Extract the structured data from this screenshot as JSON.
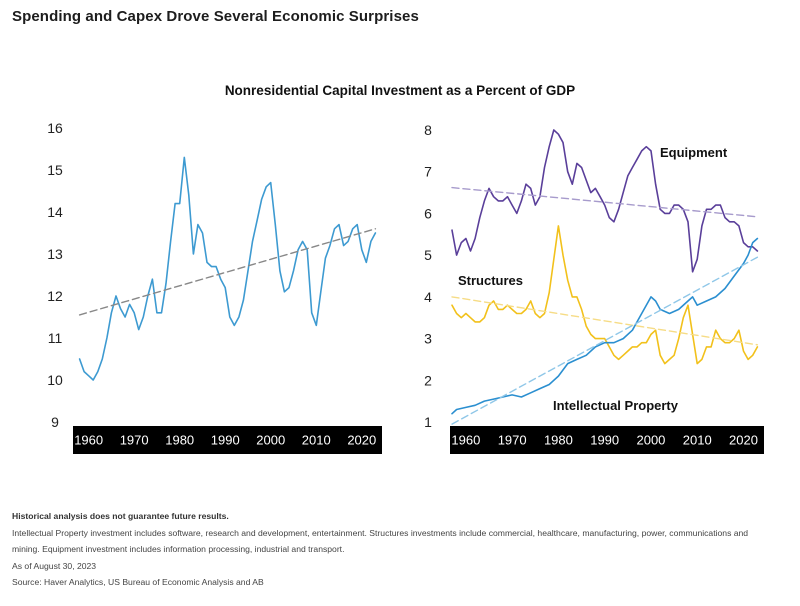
{
  "page_heading": "Spending and Capex Drove Several Economic Surprises",
  "chart_title": "Nonresidential Capital Investment as a Percent of GDP",
  "colors": {
    "total": "#3d9ad1",
    "total_trend": "#888888",
    "equipment": "#5a3f9a",
    "equipment_trend": "#a79bcc",
    "structures": "#f2c11b",
    "structures_trend": "#f6dc86",
    "ip": "#2b8fd0",
    "ip_trend": "#8fc7e8",
    "axis_band": "#000000"
  },
  "chart_data": [
    {
      "type": "line",
      "title": "",
      "yticks": [
        "16",
        "15",
        "14",
        "13",
        "12",
        "11",
        "10",
        "9"
      ],
      "xticks": [
        "1960",
        "1970",
        "1980",
        "1990",
        "2000",
        "2010",
        "2020"
      ],
      "xlim": [
        1957,
        2024
      ],
      "ylim": [
        9,
        16
      ],
      "series": [
        {
          "name": "",
          "color_key": "total",
          "points": [
            [
              1958,
              10.5
            ],
            [
              1959,
              10.2
            ],
            [
              1960,
              10.1
            ],
            [
              1961,
              10.0
            ],
            [
              1962,
              10.2
            ],
            [
              1963,
              10.5
            ],
            [
              1964,
              11.0
            ],
            [
              1965,
              11.6
            ],
            [
              1966,
              12.0
            ],
            [
              1967,
              11.7
            ],
            [
              1968,
              11.5
            ],
            [
              1969,
              11.8
            ],
            [
              1970,
              11.6
            ],
            [
              1971,
              11.2
            ],
            [
              1972,
              11.5
            ],
            [
              1973,
              12.0
            ],
            [
              1974,
              12.4
            ],
            [
              1975,
              11.6
            ],
            [
              1976,
              11.6
            ],
            [
              1977,
              12.3
            ],
            [
              1978,
              13.3
            ],
            [
              1979,
              14.2
            ],
            [
              1980,
              14.2
            ],
            [
              1981,
              15.3
            ],
            [
              1982,
              14.4
            ],
            [
              1983,
              13.0
            ],
            [
              1984,
              13.7
            ],
            [
              1985,
              13.5
            ],
            [
              1986,
              12.8
            ],
            [
              1987,
              12.7
            ],
            [
              1988,
              12.7
            ],
            [
              1989,
              12.4
            ],
            [
              1990,
              12.2
            ],
            [
              1991,
              11.5
            ],
            [
              1992,
              11.3
            ],
            [
              1993,
              11.5
            ],
            [
              1994,
              11.9
            ],
            [
              1995,
              12.6
            ],
            [
              1996,
              13.3
            ],
            [
              1997,
              13.8
            ],
            [
              1998,
              14.3
            ],
            [
              1999,
              14.6
            ],
            [
              2000,
              14.7
            ],
            [
              2001,
              13.7
            ],
            [
              2002,
              12.6
            ],
            [
              2003,
              12.1
            ],
            [
              2004,
              12.2
            ],
            [
              2005,
              12.6
            ],
            [
              2006,
              13.1
            ],
            [
              2007,
              13.3
            ],
            [
              2008,
              13.1
            ],
            [
              2009,
              11.6
            ],
            [
              2010,
              11.3
            ],
            [
              2011,
              12.1
            ],
            [
              2012,
              12.9
            ],
            [
              2013,
              13.2
            ],
            [
              2014,
              13.6
            ],
            [
              2015,
              13.7
            ],
            [
              2016,
              13.2
            ],
            [
              2017,
              13.3
            ],
            [
              2018,
              13.6
            ],
            [
              2019,
              13.7
            ],
            [
              2020,
              13.1
            ],
            [
              2021,
              12.8
            ],
            [
              2022,
              13.3
            ],
            [
              2023,
              13.5
            ]
          ]
        },
        {
          "name": "",
          "color_key": "total_trend",
          "dashed": true,
          "points": [
            [
              1958,
              11.55
            ],
            [
              2023,
              13.6
            ]
          ]
        }
      ]
    },
    {
      "type": "line",
      "title": "",
      "yticks": [
        "8",
        "7",
        "6",
        "5",
        "4",
        "3",
        "2",
        "1"
      ],
      "xticks": [
        "1960",
        "1970",
        "1980",
        "1990",
        "2000",
        "2010",
        "2020"
      ],
      "xlim": [
        1957,
        2024
      ],
      "ylim": [
        1,
        8
      ],
      "series": [
        {
          "name": "Equipment",
          "color_key": "equipment",
          "points": [
            [
              1957,
              5.6
            ],
            [
              1958,
              5.0
            ],
            [
              1959,
              5.3
            ],
            [
              1960,
              5.4
            ],
            [
              1961,
              5.1
            ],
            [
              1962,
              5.4
            ],
            [
              1963,
              5.9
            ],
            [
              1964,
              6.3
            ],
            [
              1965,
              6.6
            ],
            [
              1966,
              6.4
            ],
            [
              1967,
              6.3
            ],
            [
              1968,
              6.3
            ],
            [
              1969,
              6.4
            ],
            [
              1970,
              6.2
            ],
            [
              1971,
              6.0
            ],
            [
              1972,
              6.3
            ],
            [
              1973,
              6.7
            ],
            [
              1974,
              6.6
            ],
            [
              1975,
              6.2
            ],
            [
              1976,
              6.4
            ],
            [
              1977,
              7.1
            ],
            [
              1978,
              7.6
            ],
            [
              1979,
              8.0
            ],
            [
              1980,
              7.9
            ],
            [
              1981,
              7.7
            ],
            [
              1982,
              7.0
            ],
            [
              1983,
              6.7
            ],
            [
              1984,
              7.2
            ],
            [
              1985,
              7.1
            ],
            [
              1986,
              6.8
            ],
            [
              1987,
              6.5
            ],
            [
              1988,
              6.6
            ],
            [
              1989,
              6.4
            ],
            [
              1990,
              6.2
            ],
            [
              1991,
              5.9
            ],
            [
              1992,
              5.8
            ],
            [
              1993,
              6.1
            ],
            [
              1994,
              6.5
            ],
            [
              1995,
              6.9
            ],
            [
              1996,
              7.1
            ],
            [
              1997,
              7.3
            ],
            [
              1998,
              7.5
            ],
            [
              1999,
              7.6
            ],
            [
              2000,
              7.5
            ],
            [
              2001,
              6.7
            ],
            [
              2002,
              6.1
            ],
            [
              2003,
              6.0
            ],
            [
              2004,
              6.0
            ],
            [
              2005,
              6.2
            ],
            [
              2006,
              6.2
            ],
            [
              2007,
              6.1
            ],
            [
              2008,
              5.8
            ],
            [
              2009,
              4.6
            ],
            [
              2010,
              4.9
            ],
            [
              2011,
              5.7
            ],
            [
              2012,
              6.1
            ],
            [
              2013,
              6.1
            ],
            [
              2014,
              6.2
            ],
            [
              2015,
              6.2
            ],
            [
              2016,
              5.9
            ],
            [
              2017,
              5.8
            ],
            [
              2018,
              5.8
            ],
            [
              2019,
              5.7
            ],
            [
              2020,
              5.3
            ],
            [
              2021,
              5.2
            ],
            [
              2022,
              5.2
            ],
            [
              2023,
              5.1
            ]
          ]
        },
        {
          "name": "",
          "color_key": "equipment_trend",
          "dashed": true,
          "points": [
            [
              1957,
              6.62
            ],
            [
              2023,
              5.92
            ]
          ]
        },
        {
          "name": "Structures",
          "color_key": "structures",
          "points": [
            [
              1957,
              3.8
            ],
            [
              1958,
              3.6
            ],
            [
              1959,
              3.5
            ],
            [
              1960,
              3.6
            ],
            [
              1961,
              3.5
            ],
            [
              1962,
              3.4
            ],
            [
              1963,
              3.4
            ],
            [
              1964,
              3.5
            ],
            [
              1965,
              3.8
            ],
            [
              1966,
              3.9
            ],
            [
              1967,
              3.7
            ],
            [
              1968,
              3.7
            ],
            [
              1969,
              3.8
            ],
            [
              1970,
              3.7
            ],
            [
              1971,
              3.6
            ],
            [
              1972,
              3.6
            ],
            [
              1973,
              3.7
            ],
            [
              1974,
              3.9
            ],
            [
              1975,
              3.6
            ],
            [
              1976,
              3.5
            ],
            [
              1977,
              3.6
            ],
            [
              1978,
              4.1
            ],
            [
              1979,
              4.9
            ],
            [
              1980,
              5.7
            ],
            [
              1981,
              5.0
            ],
            [
              1982,
              4.4
            ],
            [
              1983,
              4.0
            ],
            [
              1984,
              4.0
            ],
            [
              1985,
              3.7
            ],
            [
              1986,
              3.3
            ],
            [
              1987,
              3.1
            ],
            [
              1988,
              3.0
            ],
            [
              1989,
              3.0
            ],
            [
              1990,
              3.0
            ],
            [
              1991,
              2.8
            ],
            [
              1992,
              2.6
            ],
            [
              1993,
              2.5
            ],
            [
              1994,
              2.6
            ],
            [
              1995,
              2.7
            ],
            [
              1996,
              2.8
            ],
            [
              1997,
              2.8
            ],
            [
              1998,
              2.9
            ],
            [
              1999,
              2.9
            ],
            [
              2000,
              3.1
            ],
            [
              2001,
              3.2
            ],
            [
              2002,
              2.6
            ],
            [
              2003,
              2.4
            ],
            [
              2004,
              2.5
            ],
            [
              2005,
              2.6
            ],
            [
              2006,
              3.0
            ],
            [
              2007,
              3.5
            ],
            [
              2008,
              3.8
            ],
            [
              2009,
              3.1
            ],
            [
              2010,
              2.4
            ],
            [
              2011,
              2.5
            ],
            [
              2012,
              2.8
            ],
            [
              2013,
              2.8
            ],
            [
              2014,
              3.2
            ],
            [
              2015,
              3.0
            ],
            [
              2016,
              2.9
            ],
            [
              2017,
              2.9
            ],
            [
              2018,
              3.0
            ],
            [
              2019,
              3.2
            ],
            [
              2020,
              2.7
            ],
            [
              2021,
              2.5
            ],
            [
              2022,
              2.6
            ],
            [
              2023,
              2.8
            ]
          ]
        },
        {
          "name": "",
          "color_key": "structures_trend",
          "dashed": true,
          "points": [
            [
              1957,
              4.0
            ],
            [
              2023,
              2.85
            ]
          ]
        },
        {
          "name": "Intellectual Property",
          "color_key": "ip",
          "points": [
            [
              1957,
              1.2
            ],
            [
              1958,
              1.3
            ],
            [
              1960,
              1.35
            ],
            [
              1962,
              1.4
            ],
            [
              1964,
              1.5
            ],
            [
              1966,
              1.55
            ],
            [
              1968,
              1.6
            ],
            [
              1970,
              1.65
            ],
            [
              1972,
              1.6
            ],
            [
              1974,
              1.7
            ],
            [
              1976,
              1.8
            ],
            [
              1978,
              1.9
            ],
            [
              1980,
              2.1
            ],
            [
              1982,
              2.4
            ],
            [
              1984,
              2.5
            ],
            [
              1986,
              2.6
            ],
            [
              1988,
              2.8
            ],
            [
              1990,
              2.9
            ],
            [
              1992,
              2.9
            ],
            [
              1994,
              3.0
            ],
            [
              1996,
              3.2
            ],
            [
              1998,
              3.6
            ],
            [
              2000,
              4.0
            ],
            [
              2001,
              3.9
            ],
            [
              2002,
              3.7
            ],
            [
              2004,
              3.6
            ],
            [
              2006,
              3.7
            ],
            [
              2008,
              3.9
            ],
            [
              2009,
              4.0
            ],
            [
              2010,
              3.8
            ],
            [
              2012,
              3.9
            ],
            [
              2014,
              4.0
            ],
            [
              2016,
              4.2
            ],
            [
              2018,
              4.5
            ],
            [
              2020,
              4.8
            ],
            [
              2021,
              5.0
            ],
            [
              2022,
              5.3
            ],
            [
              2023,
              5.4
            ]
          ]
        },
        {
          "name": "",
          "color_key": "ip_trend",
          "dashed": true,
          "points": [
            [
              1957,
              0.95
            ],
            [
              2023,
              4.95
            ]
          ]
        }
      ]
    }
  ],
  "footer": {
    "disclaimer": "Historical analysis does not guarantee future results.",
    "note_line1": "Intellectual Property investment includes software, research and development, entertainment. Structures investments include commercial, healthcare, manufacturing, power, communications and",
    "note_line2": "mining. Equipment investment includes information processing, industrial and transport.",
    "as_of": "As of August 30, 2023",
    "source": "Source: Haver Analytics, US Bureau of Economic Analysis and AB"
  }
}
